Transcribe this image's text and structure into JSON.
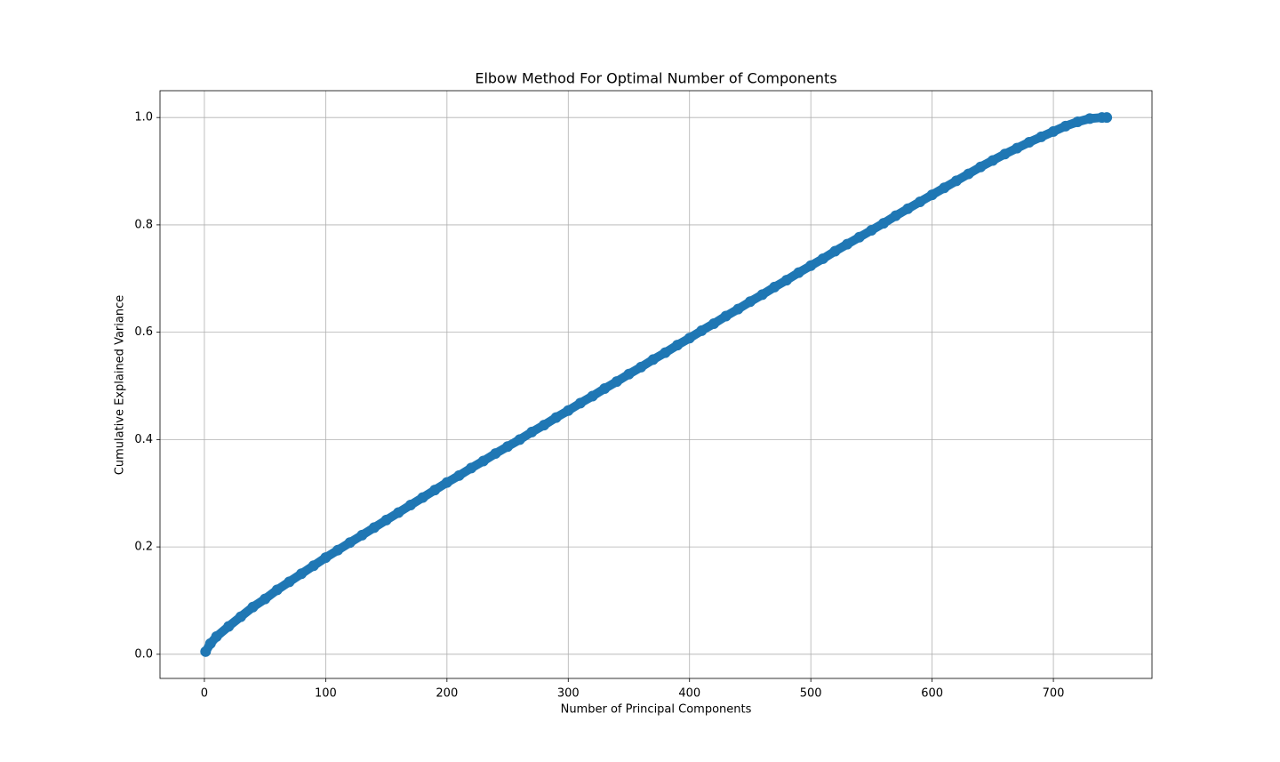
{
  "chart_data": {
    "type": "line",
    "title": "Elbow Method For Optimal Number of Components",
    "xlabel": "Number of Principal Components",
    "ylabel": "Cumulative Explained Variance",
    "x": [
      1,
      5,
      10,
      20,
      30,
      40,
      50,
      60,
      70,
      80,
      90,
      100,
      110,
      120,
      130,
      140,
      150,
      160,
      170,
      180,
      190,
      200,
      210,
      220,
      230,
      240,
      250,
      260,
      270,
      280,
      290,
      300,
      310,
      320,
      330,
      340,
      350,
      360,
      370,
      380,
      390,
      400,
      410,
      420,
      430,
      440,
      450,
      460,
      470,
      480,
      490,
      500,
      510,
      520,
      530,
      540,
      550,
      560,
      570,
      580,
      590,
      600,
      610,
      620,
      630,
      640,
      650,
      660,
      670,
      680,
      690,
      700,
      710,
      720,
      730,
      740,
      744
    ],
    "series": [
      {
        "name": "Cumulative Explained Variance",
        "color": "#1f77b4",
        "marker": "o",
        "values": [
          0.005,
          0.02,
          0.033,
          0.052,
          0.07,
          0.088,
          0.103,
          0.12,
          0.135,
          0.15,
          0.165,
          0.18,
          0.194,
          0.208,
          0.222,
          0.236,
          0.25,
          0.264,
          0.278,
          0.292,
          0.306,
          0.32,
          0.333,
          0.347,
          0.36,
          0.374,
          0.387,
          0.4,
          0.414,
          0.427,
          0.441,
          0.454,
          0.468,
          0.481,
          0.495,
          0.508,
          0.522,
          0.535,
          0.549,
          0.562,
          0.576,
          0.589,
          0.603,
          0.616,
          0.63,
          0.643,
          0.657,
          0.67,
          0.684,
          0.697,
          0.711,
          0.724,
          0.737,
          0.751,
          0.764,
          0.777,
          0.79,
          0.803,
          0.817,
          0.83,
          0.843,
          0.856,
          0.869,
          0.882,
          0.895,
          0.908,
          0.92,
          0.932,
          0.943,
          0.954,
          0.964,
          0.974,
          0.984,
          0.992,
          0.998,
          1.0,
          1.0
        ]
      }
    ],
    "xlim": [
      -36.6,
      781.3
    ],
    "ylim": [
      -0.045,
      1.05
    ],
    "xticks": [
      0,
      100,
      200,
      300,
      400,
      500,
      600,
      700
    ],
    "yticks": [
      {
        "value": 0,
        "label": "0.0"
      },
      0.2,
      0.4,
      0.6,
      0.8,
      {
        "value": 1,
        "label": "1.0"
      }
    ],
    "grid": true
  }
}
